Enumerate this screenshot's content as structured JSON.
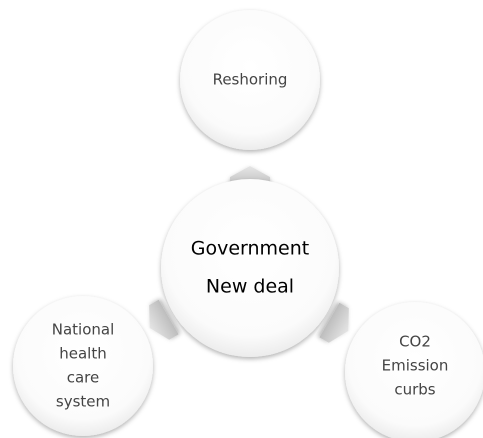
{
  "nodes": [
    {
      "lines": [
        "Government",
        "New deal"
      ]
    },
    {
      "lines": [
        "Reshoring"
      ]
    },
    {
      "lines": [
        "National",
        "health",
        "care",
        "system"
      ]
    },
    {
      "lines": [
        "CO2",
        "Emission",
        "curbs"
      ]
    }
  ]
}
